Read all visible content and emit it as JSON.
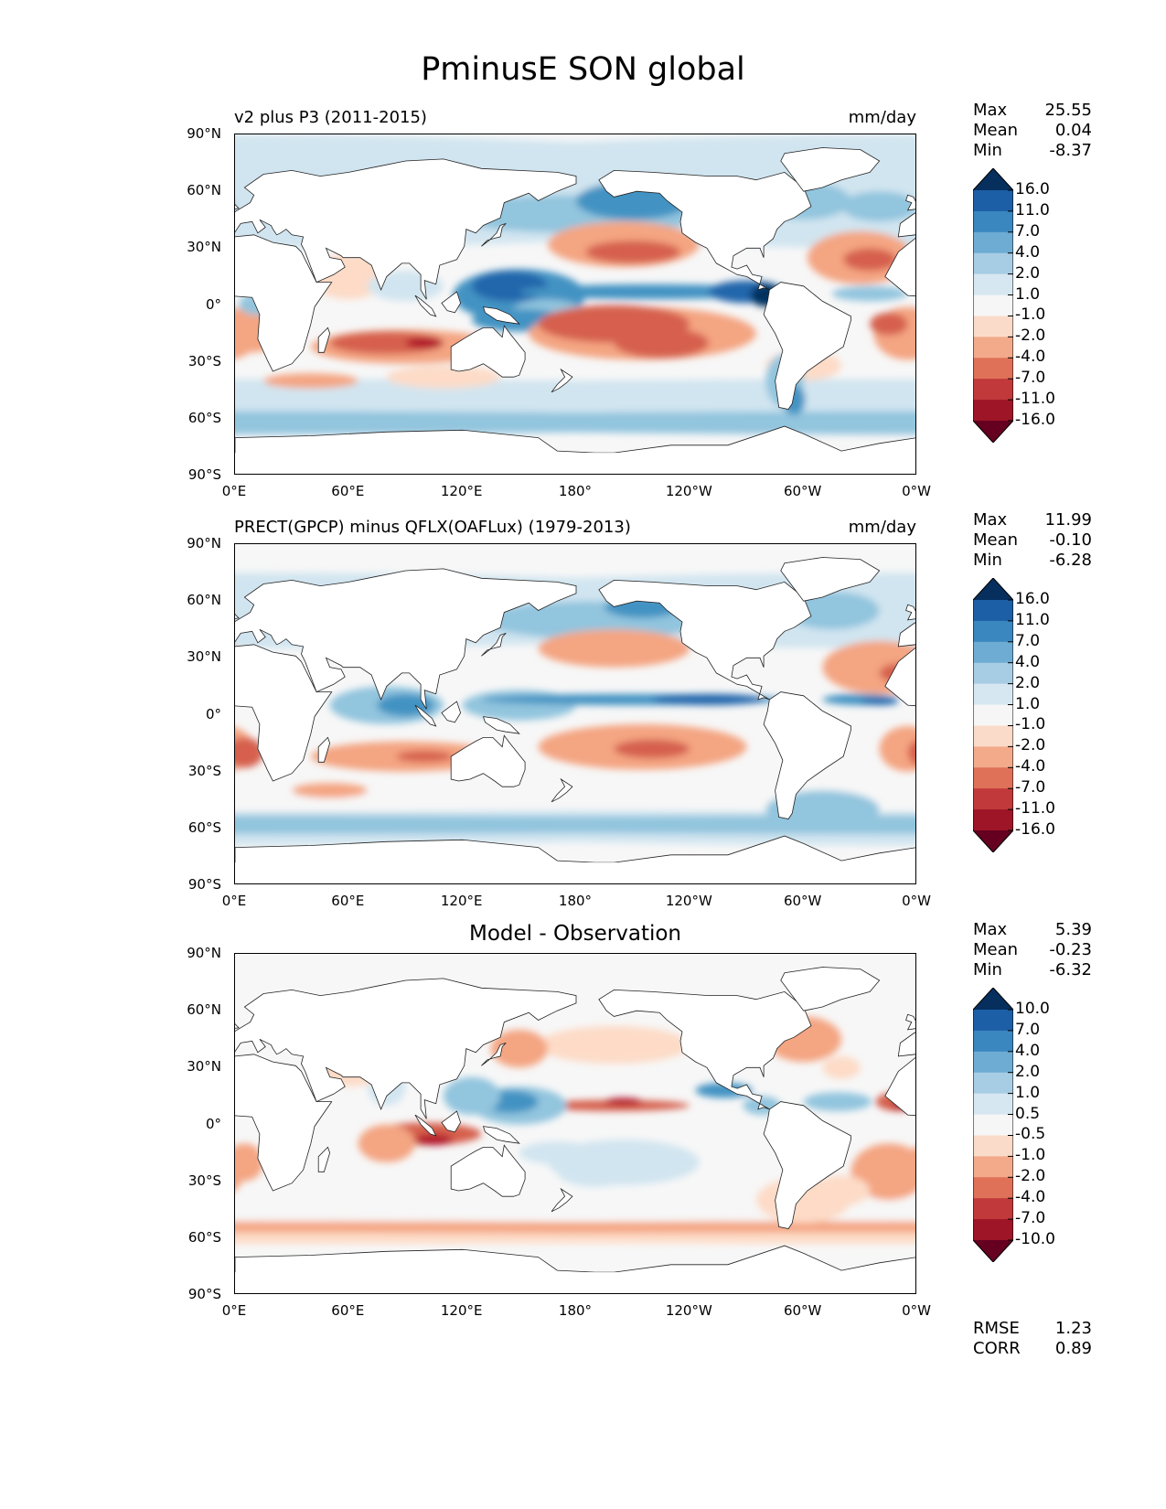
{
  "title": "PminusE SON global",
  "panels": [
    {
      "title_left": "v2 plus P3 (2011-2015)",
      "title_right": "mm/day",
      "stats": {
        "max_label": "Max",
        "max": "25.55",
        "mean_label": "Mean",
        "mean": "0.04",
        "min_label": "Min",
        "min": "-8.37"
      },
      "colorbar_levels": [
        "16.0",
        "11.0",
        "7.0",
        "4.0",
        "2.0",
        "1.0",
        "-1.0",
        "-2.0",
        "-4.0",
        "-7.0",
        "-11.0",
        "-16.0"
      ]
    },
    {
      "title_left": "PRECT(GPCP) minus QFLX(OAFLux) (1979-2013)",
      "title_right": "mm/day",
      "stats": {
        "max_label": "Max",
        "max": "11.99",
        "mean_label": "Mean",
        "mean": "-0.10",
        "min_label": "Min",
        "min": "-6.28"
      },
      "colorbar_levels": [
        "16.0",
        "11.0",
        "7.0",
        "4.0",
        "2.0",
        "1.0",
        "-1.0",
        "-2.0",
        "-4.0",
        "-7.0",
        "-11.0",
        "-16.0"
      ]
    },
    {
      "title_center": "Model - Observation",
      "stats": {
        "max_label": "Max",
        "max": "5.39",
        "mean_label": "Mean",
        "mean": "-0.23",
        "min_label": "Min",
        "min": "-6.32"
      },
      "colorbar_levels": [
        "10.0",
        "7.0",
        "4.0",
        "2.0",
        "1.0",
        "0.5",
        "-0.5",
        "-1.0",
        "-2.0",
        "-4.0",
        "-7.0",
        "-10.0"
      ],
      "rmse_label": "RMSE",
      "rmse": "1.23",
      "corr_label": "CORR",
      "corr": "0.89"
    }
  ],
  "lat_labels": [
    "90°N",
    "60°N",
    "30°N",
    "0°",
    "30°S",
    "60°S",
    "90°S"
  ],
  "lon_labels": [
    "0°E",
    "60°E",
    "120°E",
    "180°",
    "120°W",
    "60°W",
    "0°W"
  ],
  "colormap": [
    "#053061",
    "#2166ac",
    "#4393c3",
    "#92c5de",
    "#d1e5f0",
    "#f7f7f7",
    "#fddbc7",
    "#f4a582",
    "#d6604d",
    "#b2182b",
    "#67001f"
  ],
  "colorbar_colors": [
    "#062f5e",
    "#1c5fa6",
    "#3a87c0",
    "#6eacd3",
    "#a7cde4",
    "#d6e7f1",
    "#f6f6f6",
    "#fadbc9",
    "#f2aa8a",
    "#df7159",
    "#c1393a",
    "#9e1527",
    "#650020"
  ]
}
